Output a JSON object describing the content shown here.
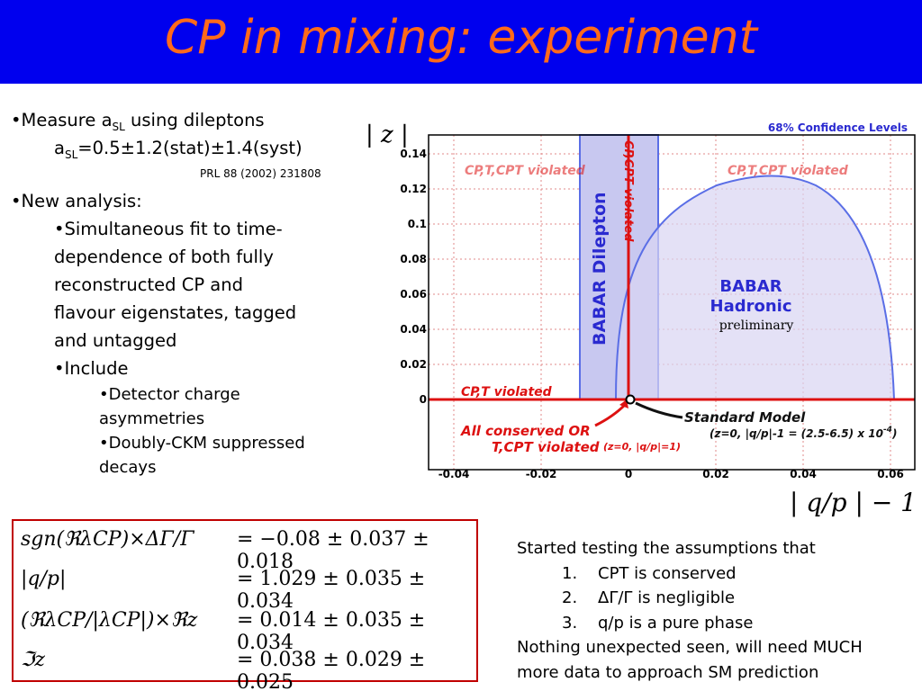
{
  "title": "CP in mixing: experiment",
  "left": {
    "b1_text": "•Measure a",
    "b1_sub": "SL",
    "b1_tail": " using dileptons",
    "b1_line2_a": "a",
    "b1_line2_sub": "SL",
    "b1_line2_b": "=0.5±1.2(stat)±1.4(syst)",
    "citation": "PRL 88 (2002) 231808",
    "b2": "•New analysis:",
    "b2_sub1_lines": [
      "•Simultaneous fit to time-",
      "dependence of both fully",
      "reconstructed CP and",
      "flavour eigenstates, tagged",
      "and untagged"
    ],
    "b2_sub2": "•Include",
    "b3_1_lines": [
      "•Detector charge",
      "asymmetries"
    ],
    "b3_2_lines": [
      "•Doubly-CKM suppressed",
      "decays"
    ]
  },
  "equations": [
    {
      "lhs": "sgn(ℜλCP)×ΔΓ/Γ",
      "rhs": "= −0.08 ± 0.037 ± 0.018"
    },
    {
      "lhs": "|q/p|",
      "rhs": "= 1.029 ± 0.035 ± 0.034"
    },
    {
      "lhs": "(ℜλCP/|λCP|)×ℜz",
      "rhs": "= 0.014 ± 0.035 ± 0.034"
    },
    {
      "lhs": "ℑz",
      "rhs": "= 0.038 ± 0.029 ± 0.025"
    }
  ],
  "notes": {
    "intro": "Started testing the assumptions that",
    "items": [
      {
        "num": "1.",
        "text": "CPT is conserved"
      },
      {
        "num": "2.",
        "text": "ΔΓ/Γ is negligible"
      },
      {
        "num": "3.",
        "text": "q/p is a pure phase"
      }
    ],
    "conclusion_lines": [
      "Nothing unexpected seen, will need MUCH",
      "more data to approach SM prediction"
    ]
  },
  "plot": {
    "ylabel": "| z |",
    "xlabel": "| q/p | − 1",
    "legend": "68% Confidence Levels",
    "x_ticks": [
      "-0.04",
      "-0.02",
      "0",
      "0.02",
      "0.04",
      "0.06"
    ],
    "y_ticks": [
      "0",
      "0.02",
      "0.04",
      "0.06",
      "0.08",
      "0.1",
      "0.12",
      "0.14"
    ],
    "region_left": "CP,T,CPT violated",
    "region_right": "CP,T,CPT violated",
    "region_vertical": "CP,CPT violated",
    "region_axis": "CP,T violated",
    "dilepton_label": "BABAR Dilepton",
    "hadronic_label_1": "BABAR",
    "hadronic_label_2": "Hadronic",
    "preliminary": "preliminary",
    "all_conserved_1": "All conserved OR",
    "all_conserved_2": "T,CPT violated",
    "origin_note": "(z=0, |q/p|=1)",
    "sm_label": "Standard Model",
    "sm_note": "(z=0, |q/p|-1 = (2.5-6.5) x 10",
    "sm_note_exp": "-4",
    "sm_note_close": ")"
  },
  "colors": {
    "title_bg": "#0000ee",
    "title_fg": "#ff6a1a",
    "band": "#c8c8f0",
    "contour": "#5a6ee6",
    "axis_red": "#dd1111",
    "annot_red": "#dd1111"
  }
}
